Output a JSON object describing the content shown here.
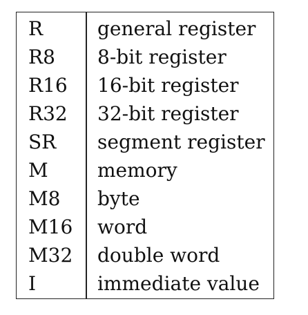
{
  "table": {
    "rows": [
      {
        "abbr": "R",
        "desc": "general register"
      },
      {
        "abbr": "R8",
        "desc": "8-bit register"
      },
      {
        "abbr": "R16",
        "desc": "16-bit register"
      },
      {
        "abbr": "R32",
        "desc": "32-bit register"
      },
      {
        "abbr": "SR",
        "desc": "segment register"
      },
      {
        "abbr": "M",
        "desc": "memory"
      },
      {
        "abbr": "M8",
        "desc": "byte"
      },
      {
        "abbr": "M16",
        "desc": "word"
      },
      {
        "abbr": "M32",
        "desc": "double word"
      },
      {
        "abbr": "I",
        "desc": "immediate value"
      }
    ]
  }
}
